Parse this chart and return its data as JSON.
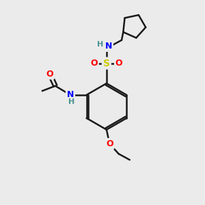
{
  "bg_color": "#ebebeb",
  "bond_color": "#1a1a1a",
  "bond_width": 1.8,
  "atom_colors": {
    "N": "#0000ff",
    "O": "#ff0000",
    "S": "#cccc00",
    "H": "#4a9090",
    "C": "#1a1a1a"
  },
  "figsize": [
    3.0,
    3.0
  ],
  "dpi": 100
}
